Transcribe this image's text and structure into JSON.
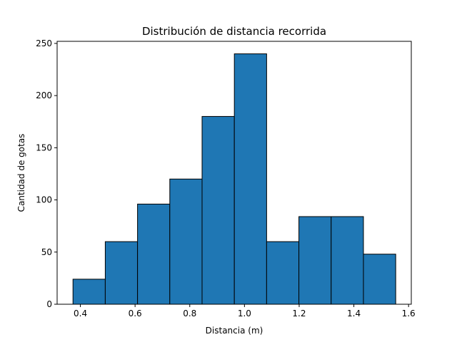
{
  "chart_data": {
    "type": "bar",
    "title": "Distribución de distancia recorrida",
    "xlabel": "Distancia (m)",
    "ylabel": "Cantidad de gotas",
    "xlim": [
      0.315,
      1.61
    ],
    "ylim": [
      0,
      252
    ],
    "bin_edges": [
      0.373,
      0.491,
      0.609,
      0.727,
      0.845,
      0.963,
      1.081,
      1.199,
      1.317,
      1.435,
      1.553
    ],
    "values": [
      24,
      60,
      96,
      120,
      180,
      240,
      60,
      84,
      84,
      48
    ],
    "x_ticks": [
      {
        "value": 0.4,
        "label": "0.4"
      },
      {
        "value": 0.6,
        "label": "0.6"
      },
      {
        "value": 0.8,
        "label": "0.8"
      },
      {
        "value": 1.0,
        "label": "1.0"
      },
      {
        "value": 1.2,
        "label": "1.2"
      },
      {
        "value": 1.4,
        "label": "1.4"
      },
      {
        "value": 1.6,
        "label": "1.6"
      }
    ],
    "y_ticks": [
      {
        "value": 0,
        "label": "0"
      },
      {
        "value": 50,
        "label": "50"
      },
      {
        "value": 100,
        "label": "100"
      },
      {
        "value": 150,
        "label": "150"
      },
      {
        "value": 200,
        "label": "200"
      },
      {
        "value": 250,
        "label": "250"
      }
    ],
    "bar_color": "#1f77b4",
    "edge_color": "#000000",
    "grid": false
  }
}
